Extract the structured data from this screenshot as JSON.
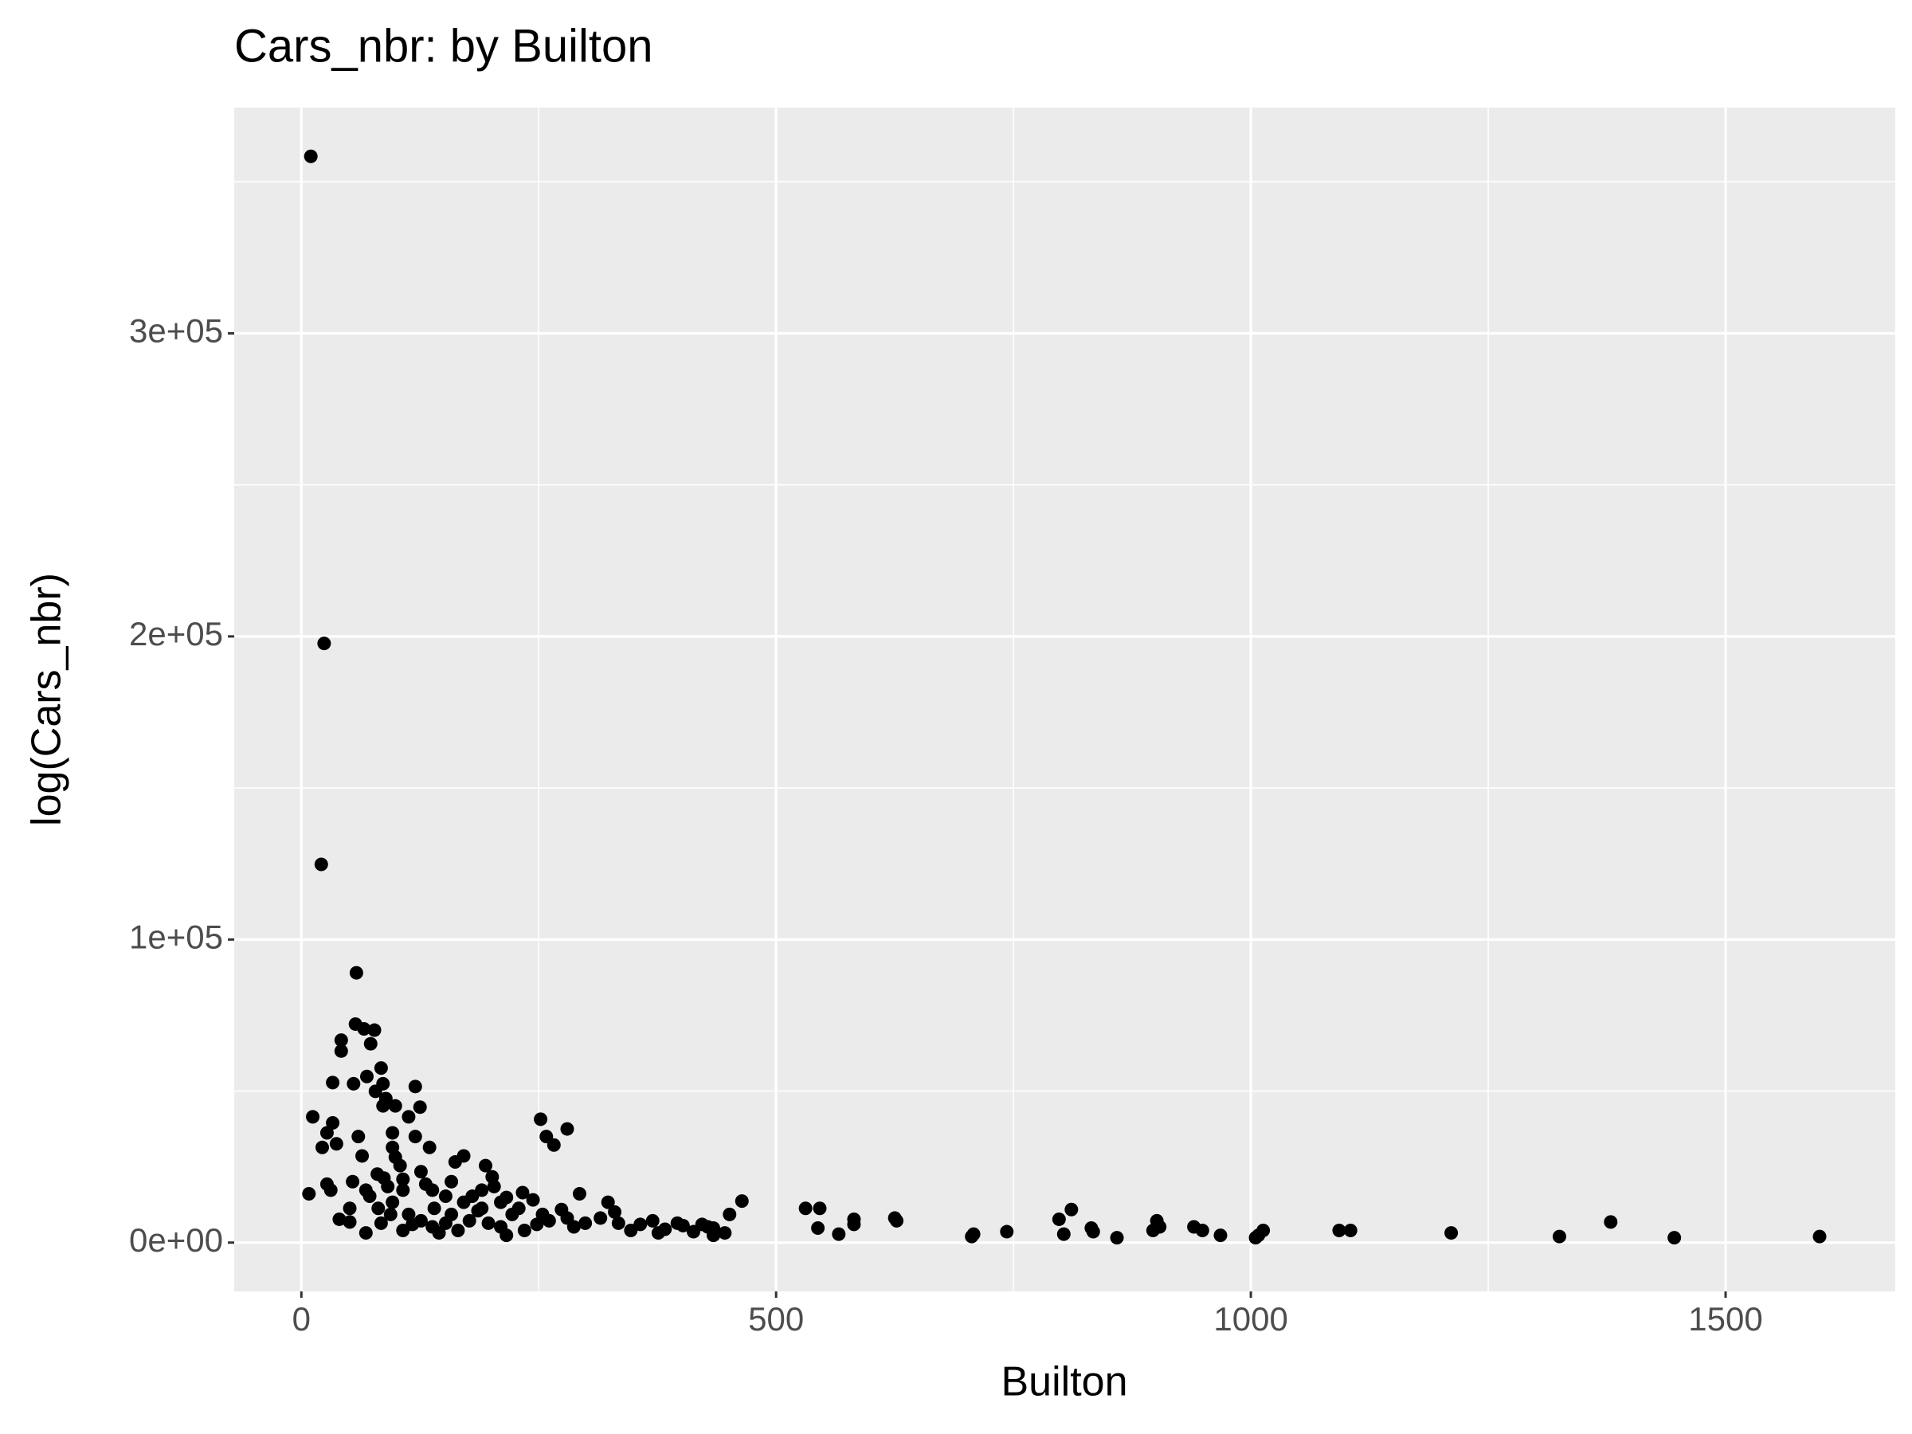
{
  "chart_data": {
    "type": "scatter",
    "title": "Cars_nbr: by Builton",
    "x_label": "Builton",
    "y_label": "log(Cars_nbr)",
    "xlim": [
      -70.7,
      1678.7
    ],
    "ylim": [
      -16100,
      374500
    ],
    "xticks": [
      0,
      500,
      1000,
      1500
    ],
    "yticks": [
      {
        "value": 0,
        "label": "0e+00"
      },
      {
        "value": 100000,
        "label": "1e+05"
      },
      {
        "value": 200000,
        "label": "2e+05"
      },
      {
        "value": 300000,
        "label": "3e+05"
      }
    ],
    "x_minor_grid": [
      250,
      750,
      1250
    ],
    "y_minor_grid": [
      50000,
      150000,
      250000,
      350000
    ],
    "grid": true,
    "color": "#000000",
    "panel_color": "#ebebeb",
    "series": [
      {
        "name": "Cars_nbr",
        "x": [
          10,
          24,
          21,
          58,
          57,
          77,
          66,
          73,
          42,
          42,
          84,
          33,
          55,
          86,
          120,
          69,
          78,
          89,
          99,
          125,
          86,
          12,
          252,
          33,
          113,
          280,
          96,
          258,
          120,
          60,
          27,
          266,
          37,
          22,
          96,
          135,
          64,
          171,
          99,
          104,
          162,
          194,
          126,
          80,
          201,
          107,
          54,
          158,
          27,
          203,
          91,
          31,
          138,
          233,
          293,
          8,
          180,
          216,
          72,
          464,
          244,
          323,
          531,
          546,
          811,
          140,
          274,
          51,
          96,
          451,
          186,
          330,
          1379,
          901,
          798,
          582,
          625,
          627,
          40,
          51,
          84,
          117,
          152,
          197,
          248,
          299,
          357,
          402,
          428,
          544,
          582,
          904,
          832,
          940,
          949,
          1093,
          1105,
          1013,
          743,
          834,
          708,
          1211,
          803,
          897,
          566,
          968,
          1008,
          706,
          859,
          1005,
          1325,
          1446,
          1599,
          446,
          413,
          68,
          94,
          107,
          126,
          145,
          165,
          177,
          190,
          210,
          222,
          235,
          261,
          287,
          315,
          334,
          347,
          370,
          383,
          396,
          422,
          434,
          210,
          190,
          171,
          152,
          131,
          107,
          87,
          68,
          81,
          229,
          254,
          280,
          158,
          138,
          113,
          216,
          376,
          434
        ],
        "values": [
          358400,
          197700,
          124800,
          89000,
          72100,
          70100,
          70500,
          65600,
          66800,
          63200,
          57600,
          52800,
          52400,
          52400,
          51500,
          54800,
          49900,
          47500,
          45100,
          44700,
          45100,
          41500,
          40700,
          39500,
          41500,
          37500,
          36200,
          35000,
          35000,
          35000,
          36200,
          32200,
          32600,
          31400,
          31400,
          31400,
          28600,
          28600,
          28200,
          25400,
          26600,
          25400,
          23400,
          22600,
          21700,
          20900,
          20100,
          20100,
          19300,
          18500,
          18500,
          17300,
          17300,
          16500,
          16100,
          16100,
          15300,
          14900,
          15300,
          13700,
          14100,
          13300,
          11300,
          11300,
          10900,
          11300,
          10900,
          11300,
          13300,
          9300,
          10500,
          10100,
          6800,
          7200,
          7700,
          7700,
          8100,
          7200,
          7700,
          6800,
          6400,
          6000,
          6400,
          6400,
          6000,
          6400,
          6000,
          5600,
          5200,
          4800,
          6000,
          5200,
          4800,
          5200,
          4000,
          4000,
          4000,
          4000,
          3600,
          3600,
          2800,
          3200,
          2800,
          4000,
          2800,
          2400,
          2400,
          2000,
          1600,
          1600,
          2000,
          1600,
          2000,
          3200,
          3600,
          3200,
          9300,
          4000,
          7200,
          3200,
          4000,
          7200,
          11300,
          5200,
          9300,
          4000,
          7200,
          5200,
          8100,
          6400,
          4000,
          7200,
          4400,
          6400,
          6000,
          4800,
          13300,
          17300,
          13300,
          15300,
          19300,
          17300,
          21300,
          17300,
          11300,
          11300,
          9300,
          8100,
          9300,
          5200,
          9300,
          2400,
          3200,
          2400
        ]
      }
    ]
  }
}
